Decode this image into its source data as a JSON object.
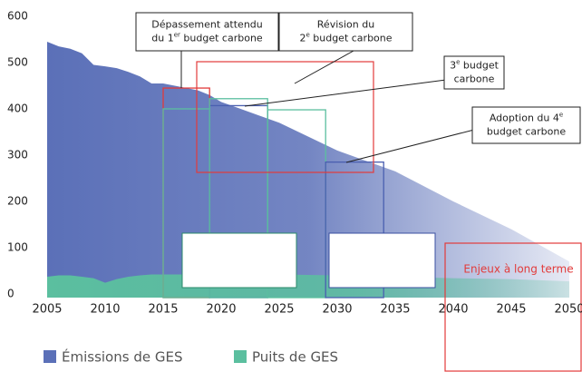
{
  "chart_data": {
    "type": "area",
    "x": [
      2005,
      2006,
      2007,
      2008,
      2009,
      2010,
      2011,
      2012,
      2013,
      2014,
      2015,
      2016,
      2017,
      2018,
      2019,
      2020,
      2025,
      2030,
      2035,
      2040,
      2045,
      2050
    ],
    "series": [
      {
        "name": "Émissions de GES",
        "color": "#5b70b8",
        "values": [
          545,
          535,
          530,
          520,
          495,
          492,
          488,
          480,
          470,
          455,
          455,
          450,
          445,
          440,
          430,
          415,
          370,
          310,
          265,
          200,
          140,
          70
        ]
      },
      {
        "name": "Puits de GES",
        "color": "#5bbf9f",
        "values": [
          -45,
          -48,
          -48,
          -45,
          -42,
          -32,
          -40,
          -45,
          -48,
          -50,
          -50,
          -50,
          -50,
          -50,
          -50,
          -50,
          -50,
          -48,
          -45,
          -42,
          -40,
          -35
        ]
      }
    ],
    "xlim": [
      2005,
      2050
    ],
    "xticks": [
      2005,
      2010,
      2015,
      2020,
      2025,
      2030,
      2035,
      2040,
      2045,
      2050
    ],
    "ylim": [
      0,
      600
    ],
    "yticks": [
      0,
      100,
      200,
      300,
      400,
      500,
      600
    ],
    "budget_periods": [
      {
        "start": 2015,
        "end": 2019,
        "value": 445,
        "color": "#e23b3b"
      },
      {
        "start": 2015,
        "end": 2019,
        "value": 400,
        "color": "#5bbf9f"
      },
      {
        "start": 2019,
        "end": 2024,
        "value": 407,
        "color": "#4a5fb0"
      },
      {
        "start": 2019,
        "end": 2024,
        "value": 422,
        "color": "#5bbf9f"
      },
      {
        "start": 2024,
        "end": 2029,
        "value": 398,
        "color": "#5bbf9f"
      },
      {
        "start": 2029,
        "end": 2034,
        "value": 285,
        "color": "#4a5fb0"
      }
    ],
    "annotations": [
      {
        "lines": [
          [
            {
              "text": "Dépassement attendu"
            }
          ],
          [
            {
              "text": "du 1"
            },
            {
              "text": "er",
              "sup": true
            },
            {
              "text": " budget carbone"
            }
          ]
        ]
      },
      {
        "lines": [
          [
            {
              "text": "Révision du"
            }
          ],
          [
            {
              "text": "2"
            },
            {
              "text": "e",
              "sup": true
            },
            {
              "text": " budget carbone"
            }
          ]
        ]
      },
      {
        "lines": [
          [
            {
              "text": "3"
            },
            {
              "text": "e",
              "sup": true
            },
            {
              "text": " budget"
            }
          ],
          [
            {
              "text": "carbone"
            }
          ]
        ]
      },
      {
        "lines": [
          [
            {
              "text": "Adoption du 4"
            },
            {
              "text": "e",
              "sup": true
            }
          ],
          [
            {
              "text": "budget carbone"
            }
          ]
        ]
      }
    ],
    "long_term_label": "Enjeux à long terme"
  }
}
